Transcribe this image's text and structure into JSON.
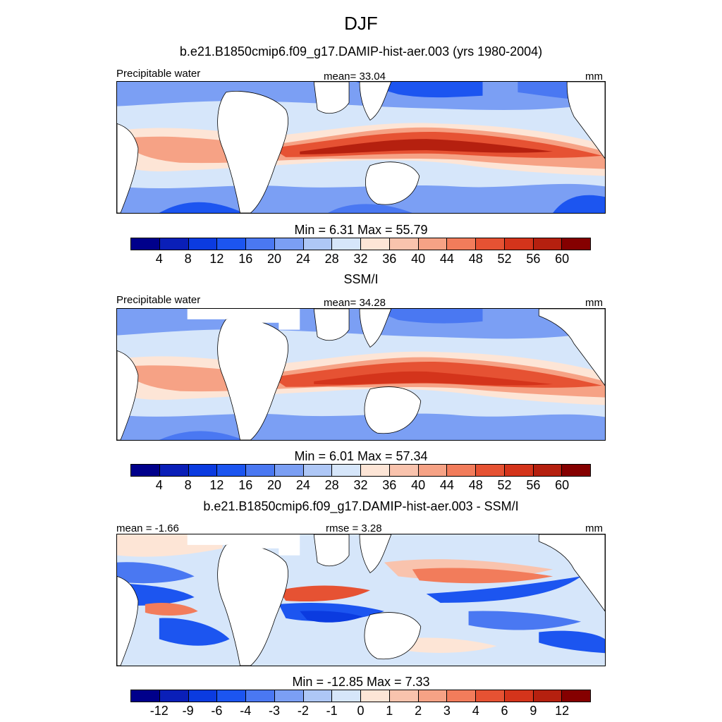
{
  "figure": {
    "title": "DJF"
  },
  "panels": [
    {
      "title": "b.e21.B1850cmip6.f09_g17.DAMIP-hist-aer.003 (yrs 1980-2004)",
      "left_label": "Precipitable water",
      "center_label": "mean=  33.04",
      "right_label": "mm",
      "minmax": "Min =   6.31 Max =  55.79",
      "kind": "field"
    },
    {
      "title": "SSM/I",
      "left_label": "Precipitable water",
      "center_label": "mean=  34.28",
      "right_label": "mm",
      "minmax": "Min =   6.01 Max =  57.34",
      "kind": "field"
    },
    {
      "title": "b.e21.B1850cmip6.f09_g17.DAMIP-hist-aer.003 - SSM/I",
      "left_label": "mean =  -1.66",
      "center_label": "rmse =   3.28",
      "right_label": "mm",
      "minmax": "Min = -12.85 Max =   7.33",
      "kind": "diff"
    }
  ],
  "colorbar": {
    "colors": [
      "#00008b",
      "#0a1fb8",
      "#0b3be0",
      "#1c55f0",
      "#4a78f2",
      "#7b9ff4",
      "#aec7f6",
      "#d6e6fa",
      "#fde5d6",
      "#f9c3ad",
      "#f6a285",
      "#f27c5b",
      "#e65233",
      "#d4341b",
      "#b5200f",
      "#850000"
    ],
    "field_ticks": [
      "4",
      "8",
      "12",
      "16",
      "20",
      "24",
      "28",
      "32",
      "36",
      "40",
      "44",
      "48",
      "52",
      "56",
      "60"
    ],
    "diff_ticks": [
      "-12",
      "-9",
      "-6",
      "-4",
      "-3",
      "-2",
      "-1",
      "0",
      "1",
      "2",
      "3",
      "4",
      "6",
      "9",
      "12"
    ]
  }
}
